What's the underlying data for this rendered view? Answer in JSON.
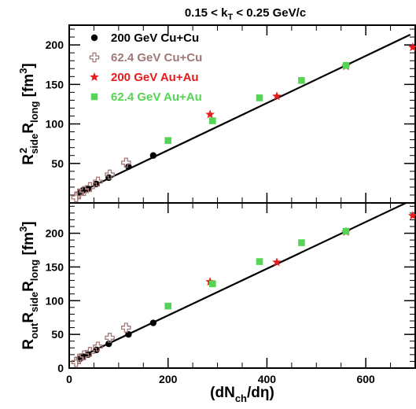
{
  "chart_data": {
    "type": "scatter",
    "title": "0.15 < k",
    "title_sub": "T",
    "title_tail": " < 0.25 GeV/c",
    "xlabel_parts": [
      "(dN",
      "ch",
      "/dη)"
    ],
    "xlim": [
      0,
      700
    ],
    "x_ticks": [
      "0",
      "200",
      "400",
      "600"
    ],
    "x_tick_values": [
      0,
      200,
      400,
      600
    ],
    "grid": false,
    "legend_position": "top-left",
    "legend": [
      {
        "label": "200 GeV Cu+Cu",
        "marker": "circle",
        "color": "#000000"
      },
      {
        "label": "62.4 GeV Cu+Cu",
        "marker": "open-cross",
        "color": "#a07878"
      },
      {
        "label": "200 GeV Au+Au",
        "marker": "star",
        "color": "#e61c1c"
      },
      {
        "label": "62.4 GeV Au+Au",
        "marker": "square",
        "color": "#55d455"
      }
    ],
    "panels": [
      {
        "id": "top",
        "ylabel_parts": [
          "R",
          "2",
          "side",
          "R",
          "long",
          " [fm",
          "3",
          "]"
        ],
        "ylim": [
          0,
          225
        ],
        "y_ticks": [
          "50",
          "100",
          "150",
          "200"
        ],
        "y_tick_values": [
          50,
          100,
          150,
          200
        ],
        "fit_line": [
          [
            20,
            13
          ],
          [
            690,
            213
          ]
        ],
        "series": [
          {
            "name": "200 GeV Cu+Cu",
            "marker": "circle",
            "color": "#000000",
            "points": [
              [
                22,
                13
              ],
              [
                28,
                16
              ],
              [
                38,
                18
              ],
              [
                55,
                24
              ],
              [
                80,
                32
              ],
              [
                120,
                46
              ],
              [
                170,
                60
              ]
            ]
          },
          {
            "name": "62.4 GeV Cu+Cu",
            "marker": "open-cross",
            "color": "#a07878",
            "points": [
              [
                14,
                7
              ],
              [
                20,
                12
              ],
              [
                30,
                15
              ],
              [
                42,
                20
              ],
              [
                58,
                27
              ],
              [
                82,
                36
              ],
              [
                115,
                51
              ]
            ]
          },
          {
            "name": "200 GeV Au+Au",
            "marker": "star",
            "color": "#e61c1c",
            "points": [
              [
                285,
                112
              ],
              [
                420,
                135
              ],
              [
                560,
                173
              ],
              [
                695,
                197
              ]
            ]
          },
          {
            "name": "62.4 GeV Au+Au",
            "marker": "square",
            "color": "#55d455",
            "points": [
              [
                200,
                79
              ],
              [
                290,
                104
              ],
              [
                385,
                133
              ],
              [
                470,
                155
              ],
              [
                560,
                174
              ]
            ]
          }
        ]
      },
      {
        "id": "bottom",
        "ylabel_parts": [
          "R",
          "out",
          "R",
          "side",
          "R",
          "long",
          " [fm",
          "3",
          "]"
        ],
        "ylim": [
          0,
          245
        ],
        "y_ticks": [
          "0",
          "50",
          "100",
          "150",
          "200"
        ],
        "y_tick_values": [
          0,
          50,
          100,
          150,
          200
        ],
        "fit_line": [
          [
            15,
            14
          ],
          [
            690,
            248
          ]
        ],
        "series": [
          {
            "name": "200 GeV Cu+Cu",
            "marker": "circle",
            "color": "#000000",
            "points": [
              [
                22,
                14
              ],
              [
                28,
                17
              ],
              [
                38,
                20
              ],
              [
                55,
                27
              ],
              [
                80,
                36
              ],
              [
                120,
                50
              ],
              [
                170,
                67
              ]
            ]
          },
          {
            "name": "62.4 GeV Cu+Cu",
            "marker": "open-cross",
            "color": "#a07878",
            "points": [
              [
                14,
                9
              ],
              [
                20,
                14
              ],
              [
                30,
                19
              ],
              [
                42,
                24
              ],
              [
                58,
                32
              ],
              [
                82,
                45
              ],
              [
                115,
                60
              ]
            ]
          },
          {
            "name": "200 GeV Au+Au",
            "marker": "star",
            "color": "#e61c1c",
            "points": [
              [
                285,
                128
              ],
              [
                420,
                157
              ],
              [
                560,
                202
              ],
              [
                695,
                226
              ]
            ]
          },
          {
            "name": "62.4 GeV Au+Au",
            "marker": "square",
            "color": "#55d455",
            "points": [
              [
                200,
                92
              ],
              [
                290,
                125
              ],
              [
                385,
                158
              ],
              [
                470,
                186
              ],
              [
                560,
                203
              ]
            ]
          }
        ]
      }
    ]
  }
}
